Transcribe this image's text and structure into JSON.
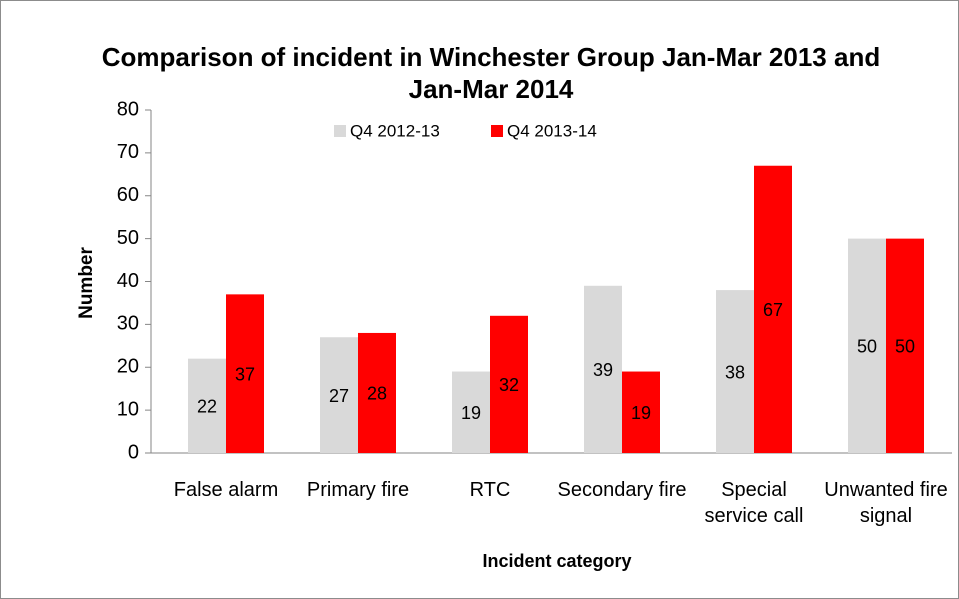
{
  "chart_data": {
    "type": "bar",
    "title": "Comparison of incident in Winchester Group Jan-Mar 2013 and Jan-Mar 2014",
    "x_label": "Incident category",
    "y_label": "Number",
    "categories": [
      "False alarm",
      "Primary fire",
      "RTC",
      "Secondary fire",
      "Special service call",
      "Unwanted fire signal"
    ],
    "series": [
      {
        "name": "Q4 2012-13",
        "color": "#d9d9d9",
        "values": [
          22,
          27,
          19,
          39,
          38,
          50
        ]
      },
      {
        "name": "Q4 2013-14",
        "color": "#ff0000",
        "values": [
          37,
          28,
          32,
          19,
          67,
          50
        ]
      }
    ],
    "ylim": [
      0,
      80
    ],
    "yticks": [
      0,
      10,
      20,
      30,
      40,
      50,
      60,
      70,
      80
    ],
    "legend": "top"
  }
}
